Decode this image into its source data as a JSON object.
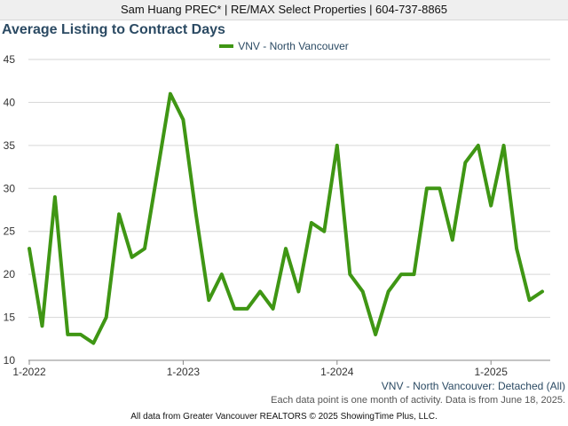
{
  "header": {
    "text": "Sam Huang PREC* | RE/MAX Select Properties | 604-737-8865"
  },
  "footer": {
    "subtitle": "VNV - North Vancouver: Detached (All)",
    "note": "Each data point is one month of activity. Data is from June 18, 2025.",
    "copyright": "All data from Greater Vancouver REALTORS © 2025 ShowingTime Plus, LLC."
  },
  "colors": {
    "series": "#3f9614",
    "title": "#2b4a63",
    "grid": "#d6d6d6"
  },
  "chart_data": {
    "type": "line",
    "title": "Average Listing to Contract Days",
    "xlabel": "",
    "ylabel": "",
    "ylim": [
      10,
      45
    ],
    "yticks": [
      10,
      15,
      20,
      25,
      30,
      35,
      40,
      45
    ],
    "xtick_labels": [
      "1-2022",
      "1-2023",
      "1-2024",
      "1-2025"
    ],
    "grid": true,
    "legend_position": "top-center",
    "x": [
      "2022-01",
      "2022-02",
      "2022-03",
      "2022-04",
      "2022-05",
      "2022-06",
      "2022-07",
      "2022-08",
      "2022-09",
      "2022-10",
      "2022-11",
      "2022-12",
      "2023-01",
      "2023-02",
      "2023-03",
      "2023-04",
      "2023-05",
      "2023-06",
      "2023-07",
      "2023-08",
      "2023-09",
      "2023-10",
      "2023-11",
      "2023-12",
      "2024-01",
      "2024-02",
      "2024-03",
      "2024-04",
      "2024-05",
      "2024-06",
      "2024-07",
      "2024-08",
      "2024-09",
      "2024-10",
      "2024-11",
      "2024-12",
      "2025-01",
      "2025-02",
      "2025-03",
      "2025-04",
      "2025-05"
    ],
    "series": [
      {
        "name": "VNV - North Vancouver",
        "values": [
          23,
          14,
          29,
          13,
          13,
          12,
          15,
          27,
          22,
          23,
          32,
          41,
          38,
          27,
          17,
          20,
          16,
          16,
          18,
          16,
          23,
          18,
          26,
          25,
          35,
          20,
          18,
          13,
          18,
          20,
          20,
          30,
          30,
          24,
          33,
          35,
          28,
          35,
          23,
          17,
          18
        ]
      }
    ]
  }
}
